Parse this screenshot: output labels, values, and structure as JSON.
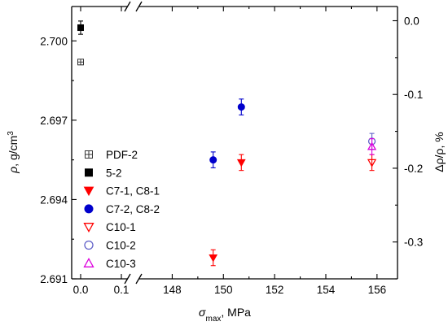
{
  "chart_data": {
    "type": "scatter",
    "xlabel": {
      "main": "σ",
      "sub": "max",
      "unit": ", MPa"
    },
    "ylabel_left": {
      "main": "ρ",
      "rest": ", g/cm",
      "sup": "3"
    },
    "ylabel_right": "Δρ/ρ, %",
    "x_axis": {
      "broken": true,
      "segment1_ticks": [
        0.0,
        0.1
      ],
      "segment1_tick_labels": [
        "0.0",
        "0.1"
      ],
      "segment2_range": [
        147,
        156.8
      ],
      "segment2_ticks": [
        148,
        150,
        152,
        154,
        156
      ],
      "segment2_tick_labels": [
        "148",
        "150",
        "152",
        "154",
        "156"
      ]
    },
    "y_left": {
      "range": [
        2.691,
        2.7013
      ],
      "ticks": [
        2.691,
        2.694,
        2.697,
        2.7
      ],
      "tick_labels": [
        "2.691",
        "2.694",
        "2.697",
        "2.700"
      ]
    },
    "y_right": {
      "range": [
        -0.35,
        0.0193
      ],
      "ticks": [
        0.0,
        -0.1,
        -0.2,
        -0.3
      ],
      "tick_labels": [
        "0.0",
        "-0.1",
        "-0.2",
        "-0.3"
      ]
    },
    "series": [
      {
        "name": "PDF-2",
        "marker": "square-cross",
        "color": "#333333",
        "points": [
          {
            "x": 0.0,
            "y": 2.6992,
            "err": 0.0001
          }
        ]
      },
      {
        "name": "5-2",
        "marker": "square-filled",
        "color": "#000000",
        "points": [
          {
            "x": 0.0,
            "y": 2.7005,
            "err": 0.00025
          }
        ]
      },
      {
        "name": "C7-1, C8-1",
        "marker": "triangle-down-filled",
        "color": "#ff0000",
        "points": [
          {
            "x": 149.6,
            "y": 2.6918,
            "err": 0.0003
          },
          {
            "x": 150.7,
            "y": 2.6954,
            "err": 0.0003
          }
        ]
      },
      {
        "name": "C7-2, C8-2",
        "marker": "circle-filled",
        "color": "#0000cc",
        "points": [
          {
            "x": 149.6,
            "y": 2.6955,
            "err": 0.0003
          },
          {
            "x": 150.7,
            "y": 2.6975,
            "err": 0.0003
          }
        ]
      },
      {
        "name": "C10-1",
        "marker": "triangle-down-open",
        "color": "#ff0000",
        "points": [
          {
            "x": 155.8,
            "y": 2.6954,
            "err": 0.0003
          }
        ]
      },
      {
        "name": "C10-2",
        "marker": "circle-open",
        "color": "#6060c8",
        "points": [
          {
            "x": 155.8,
            "y": 2.6962,
            "err": 0.0003
          }
        ]
      },
      {
        "name": "C10-3",
        "marker": "triangle-up-open",
        "color": "#dd00dd",
        "points": [
          {
            "x": 155.8,
            "y": 2.696,
            "err": 0.0003
          }
        ]
      }
    ],
    "legend_position": "left"
  }
}
